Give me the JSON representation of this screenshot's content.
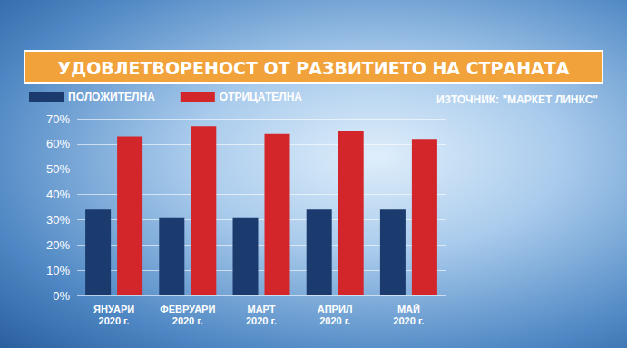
{
  "chart_data": {
    "type": "bar",
    "title": "УДОВЛЕТВОРЕНОСТ ОТ РАЗВИТИЕТО НА СТРАНАТА",
    "source": "ИЗТОЧНИК: \"МАРКЕТ ЛИНКС\"",
    "categories": [
      "ЯНУАРИ\n2020 г.",
      "ФЕВРУАРИ\n2020 г.",
      "МАРТ\n2020 г.",
      "АПРИЛ\n2020 г.",
      "МАЙ\n2020 г."
    ],
    "series": [
      {
        "name": "ПОЛОЖИТЕЛНА",
        "color": "#1b3b6e",
        "values": [
          34,
          31,
          31,
          34,
          34
        ]
      },
      {
        "name": "ОТРИЦАТЕЛНА",
        "color": "#d3262b",
        "values": [
          63,
          67,
          64,
          65,
          62
        ]
      }
    ],
    "ylim": [
      0,
      70
    ],
    "yticks": [
      {
        "value": 0,
        "label": "0%"
      },
      {
        "value": 10,
        "label": "10%"
      },
      {
        "value": 20,
        "label": "20%"
      },
      {
        "value": 30,
        "label": "30%"
      },
      {
        "value": 40,
        "label": "40%"
      },
      {
        "value": 50,
        "label": "50%"
      },
      {
        "value": 60,
        "label": "60%"
      },
      {
        "value": 70,
        "label": "70%"
      }
    ],
    "grid": true,
    "legend": "top-left"
  }
}
